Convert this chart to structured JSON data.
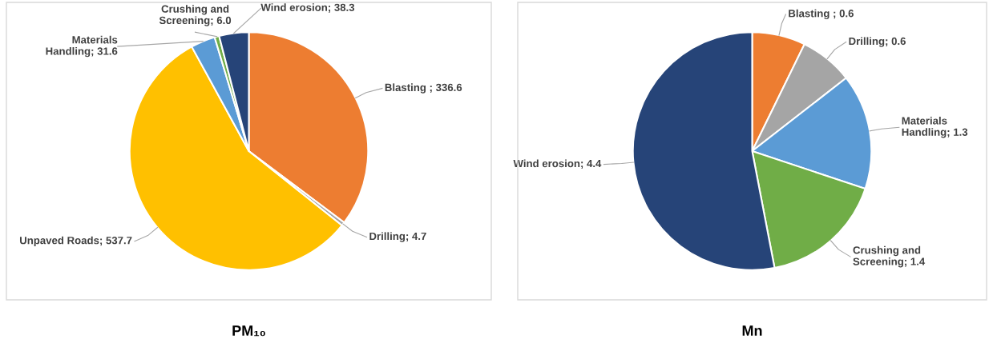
{
  "chart_data": [
    {
      "type": "pie",
      "title": "PM₁₀",
      "categories": [
        "Blasting ",
        "Drilling",
        "Unpaved Roads",
        "Materials\nHandling",
        "Crushing and\nScreening",
        "Wind erosion"
      ],
      "values": [
        336.6,
        4.7,
        537.7,
        31.6,
        6.0,
        38.3
      ],
      "value_labels": [
        "336.6",
        "4.7",
        "537.7",
        "31.6",
        "6.0",
        "38.3"
      ],
      "colors": [
        "#ed7d31",
        "#a5a5a5",
        "#ffc000",
        "#5b9bd5",
        "#70ad47",
        "#264478"
      ]
    },
    {
      "type": "pie",
      "title": "Mn",
      "categories": [
        "Blasting ",
        "Drilling",
        "Materials\nHandling",
        "Crushing and\nScreening",
        "Wind erosion"
      ],
      "values": [
        0.6,
        0.6,
        1.3,
        1.4,
        4.4
      ],
      "value_labels": [
        "0.6",
        "0.6",
        "1.3",
        "1.4",
        "4.4"
      ],
      "colors": [
        "#ed7d31",
        "#a5a5a5",
        "#5b9bd5",
        "#70ad47",
        "#264478"
      ]
    }
  ]
}
